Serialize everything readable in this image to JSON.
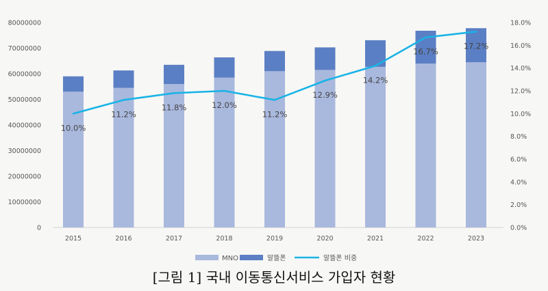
{
  "chart_data": {
    "type": "bar",
    "stacked": true,
    "categories": [
      "2015",
      "2016",
      "2017",
      "2018",
      "2019",
      "2020",
      "2021",
      "2022",
      "2023"
    ],
    "series": [
      {
        "name": "MNO",
        "values": [
          53000000,
          54500000,
          56000000,
          58500000,
          61000000,
          61500000,
          62700000,
          64000000,
          64500000
        ],
        "color": "#a9b8dd"
      },
      {
        "name": "알뜰폰",
        "values": [
          6000000,
          6800000,
          7500000,
          7900000,
          7900000,
          8800000,
          10400000,
          12800000,
          13300000
        ],
        "color": "#5b7fc4"
      }
    ],
    "line_series": {
      "name": "알뜰폰 비중",
      "values": [
        10.0,
        11.2,
        11.8,
        12.0,
        11.2,
        12.9,
        14.2,
        16.7,
        17.2
      ],
      "labels": [
        "10.0%",
        "11.2%",
        "11.8%",
        "12.0%",
        "11.2%",
        "12.9%",
        "14.2%",
        "16.7%",
        "17.2%"
      ],
      "color": "#19b3e6"
    },
    "y_left": {
      "range": [
        0,
        80000000
      ],
      "ticks": [
        "0",
        "10000000",
        "20000000",
        "30000000",
        "40000000",
        "50000000",
        "60000000",
        "70000000",
        "80000000"
      ]
    },
    "y_right": {
      "range": [
        0,
        18
      ],
      "ticks": [
        "0.0%",
        "2.0%",
        "4.0%",
        "6.0%",
        "8.0%",
        "10.0%",
        "12.0%",
        "14.0%",
        "16.0%",
        "18.0%"
      ]
    },
    "legend": [
      "MNO",
      "알뜰폰",
      "알뜰폰 비중"
    ],
    "legend_position": "bottom",
    "grid": false
  },
  "caption": "[그림 1] 국내 이동통신서비스 가입자 현황"
}
